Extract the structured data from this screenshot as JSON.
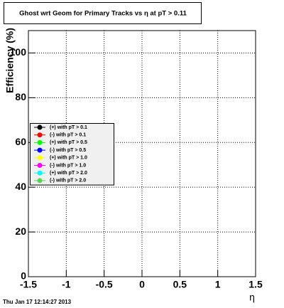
{
  "chart_data": {
    "type": "line",
    "title": "Ghost wrt Geom for Primary Tracks vs η at pT > 0.11",
    "x_label": "η",
    "y_label": "Efficiency (%)",
    "timestamp": "Thu Jan 17 12:14:27 2013",
    "x": [],
    "series": [
      {
        "name": "(+) with pT > 0.1",
        "color": "#000000",
        "values": []
      },
      {
        "name": "(-) with pT > 0.1",
        "color": "#ff0000",
        "values": []
      },
      {
        "name": "(+) with pT > 0.5",
        "color": "#00ff00",
        "values": []
      },
      {
        "name": "(-) with pT > 0.5",
        "color": "#0000ff",
        "values": []
      },
      {
        "name": "(+) with pT > 1.0",
        "color": "#ffff00",
        "values": []
      },
      {
        "name": "(-) with pT > 1.0",
        "color": "#ff00ff",
        "values": []
      },
      {
        "name": "(+) with pT > 2.0",
        "color": "#00ffff",
        "values": []
      },
      {
        "name": "(-) with pT > 2.0",
        "color": "#59d454",
        "values": []
      }
    ],
    "xlim": [
      -1.5,
      1.5
    ],
    "xticks": [
      -1.5,
      -1,
      -0.5,
      0,
      0.5,
      1,
      1.5
    ],
    "ylim": [
      0,
      110
    ],
    "yticks": [
      0,
      20,
      40,
      60,
      80,
      100
    ],
    "grid": true,
    "legend": "left"
  }
}
